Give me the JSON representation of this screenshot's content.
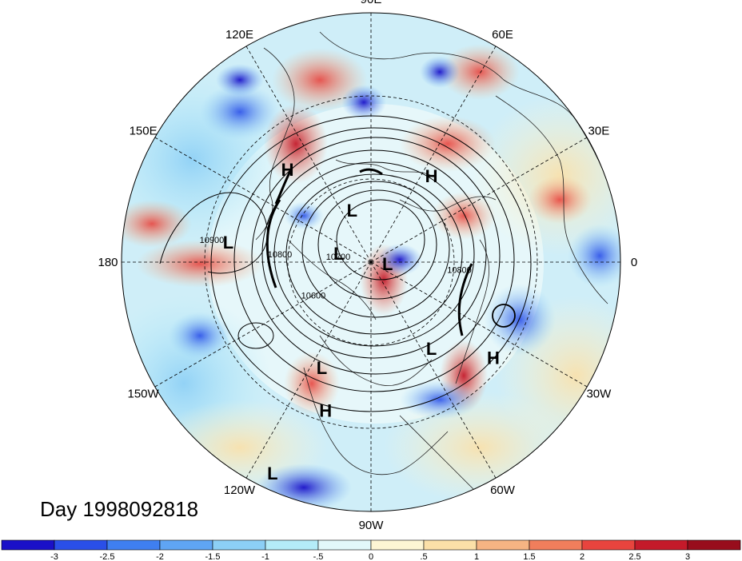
{
  "title": "Day 1998092818",
  "longitude_labels": [
    "90E",
    "60E",
    "30E",
    "0",
    "30W",
    "60W",
    "90W",
    "120W",
    "150W",
    "180",
    "150E",
    "120E"
  ],
  "pressure_centers": [
    {
      "type": "H",
      "lon": 132,
      "lat": 45
    },
    {
      "type": "H",
      "lon": 55,
      "lat": 52
    },
    {
      "type": "L",
      "lon": 110,
      "lat": 70
    },
    {
      "type": "L",
      "lon": 172,
      "lat": 38
    },
    {
      "type": "L",
      "lon": 165,
      "lat": 78
    },
    {
      "type": "L",
      "lon": -5,
      "lat": 84
    },
    {
      "type": "L",
      "lon": -115,
      "lat": 48
    },
    {
      "type": "L",
      "lon": -55,
      "lat": 52
    },
    {
      "type": "H",
      "lon": -38,
      "lat": 34
    },
    {
      "type": "H",
      "lon": -107,
      "lat": 34
    },
    {
      "type": "L",
      "lon": -115,
      "lat": 6
    }
  ],
  "contour_labels": [
    {
      "text": "10900",
      "lon": 172,
      "lat": 32
    },
    {
      "text": "10800",
      "lon": 175,
      "lat": 57
    },
    {
      "text": "10700",
      "lon": 170,
      "lat": 78
    },
    {
      "text": "10600",
      "lon": -150,
      "lat": 66
    },
    {
      "text": "10800",
      "lon": -5,
      "lat": 58
    }
  ],
  "colorbar": {
    "ticks": [
      "-3",
      "-2.5",
      "-2",
      "-1.5",
      "-1",
      "-.5",
      "0",
      ".5",
      "1",
      "1.5",
      "2",
      "2.5",
      "3"
    ],
    "colors": [
      "#1a10c8",
      "#2a4fe8",
      "#3f7ff0",
      "#5fa5f4",
      "#8ccff6",
      "#b4ecf8",
      "#e2f8fa",
      "#fdf6d4",
      "#fbe0a8",
      "#f6b483",
      "#f07e5c",
      "#e8443e",
      "#c41a2a",
      "#980d1c"
    ]
  }
}
